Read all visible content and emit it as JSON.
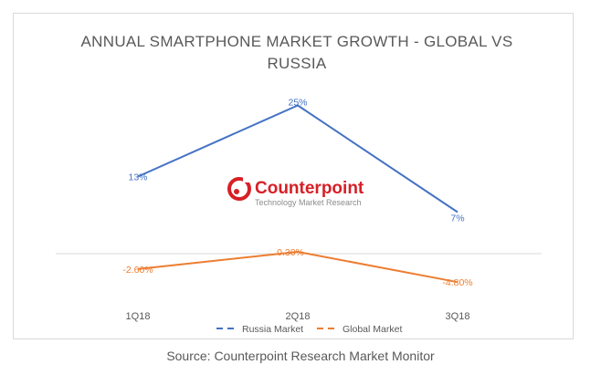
{
  "chart_data": {
    "type": "line",
    "title_lines": [
      "ANNUAL SMARTPHONE MARKET GROWTH - GLOBAL VS",
      "RUSSIA"
    ],
    "categories": [
      "1Q18",
      "2Q18",
      "3Q18"
    ],
    "xlabel": "",
    "ylabel": "",
    "ylim": [
      -10,
      30
    ],
    "grid": false,
    "legend_position": "bottom",
    "series": [
      {
        "name": "Russia Market",
        "values": [
          13,
          25,
          7
        ],
        "labels": [
          "13%",
          "25%",
          "7%"
        ],
        "color": "#4472c4"
      },
      {
        "name": "Global Market",
        "values": [
          -2.6,
          0.3,
          -4.8
        ],
        "labels": [
          "-2.60%",
          "0.30%",
          "-4.80%"
        ],
        "color": "#ed7d31"
      }
    ]
  },
  "watermark": {
    "brand": "Counterpoint",
    "tagline": "Technology Market Research",
    "icon": "counterpoint-logo-icon",
    "color": "#d71f26"
  },
  "source": "Source: Counterpoint Research Market Monitor"
}
